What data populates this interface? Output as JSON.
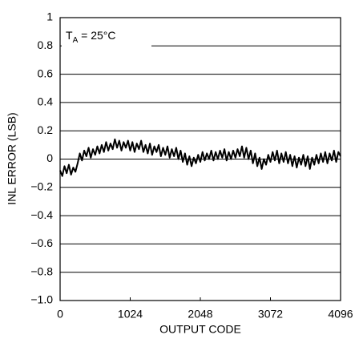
{
  "chart_data": {
    "type": "line",
    "xlabel": "OUTPUT CODE",
    "ylabel": "INL ERROR (LSB)",
    "annotation": {
      "main": "T",
      "sub": "A",
      "rest": " = 25°C"
    },
    "color": "#000000",
    "grid": true,
    "xlim": [
      0,
      4096
    ],
    "xticks": [
      0,
      1024,
      2048,
      3072,
      4096
    ],
    "ylim": [
      -1,
      1
    ],
    "yticks": [
      {
        "value": -1,
        "label": "−1.0"
      },
      {
        "value": -0.8,
        "label": "−0.8"
      },
      {
        "value": -0.6,
        "label": "−0.6"
      },
      {
        "value": -0.4,
        "label": "−0.4"
      },
      {
        "value": -0.2,
        "label": "−0.2"
      },
      0,
      0.2,
      0.4,
      0.6,
      0.8,
      1
    ],
    "x": [
      0,
      32,
      64,
      96,
      128,
      160,
      192,
      224,
      256,
      288,
      320,
      352,
      384,
      416,
      448,
      480,
      512,
      544,
      576,
      608,
      640,
      672,
      704,
      736,
      768,
      800,
      832,
      864,
      896,
      928,
      960,
      992,
      1024,
      1056,
      1088,
      1120,
      1152,
      1184,
      1216,
      1248,
      1280,
      1312,
      1344,
      1376,
      1408,
      1440,
      1472,
      1504,
      1536,
      1568,
      1600,
      1632,
      1664,
      1696,
      1728,
      1760,
      1792,
      1824,
      1856,
      1888,
      1920,
      1952,
      1984,
      2016,
      2048,
      2080,
      2112,
      2144,
      2176,
      2208,
      2240,
      2272,
      2304,
      2336,
      2368,
      2400,
      2432,
      2464,
      2496,
      2528,
      2560,
      2592,
      2624,
      2656,
      2688,
      2720,
      2752,
      2784,
      2816,
      2848,
      2880,
      2912,
      2944,
      2976,
      3008,
      3040,
      3072,
      3104,
      3136,
      3168,
      3200,
      3232,
      3264,
      3296,
      3328,
      3360,
      3392,
      3424,
      3456,
      3488,
      3520,
      3552,
      3584,
      3616,
      3648,
      3680,
      3712,
      3744,
      3776,
      3808,
      3840,
      3872,
      3904,
      3936,
      3968,
      4000,
      4032,
      4064,
      4096
    ],
    "values": [
      -0.08,
      -0.12,
      -0.05,
      -0.1,
      -0.04,
      -0.11,
      -0.06,
      -0.09,
      -0.03,
      0.04,
      -0.01,
      0.06,
      0.02,
      0.08,
      0.01,
      0.07,
      0.03,
      0.09,
      0.04,
      0.1,
      0.05,
      0.12,
      0.06,
      0.11,
      0.07,
      0.14,
      0.08,
      0.13,
      0.06,
      0.12,
      0.08,
      0.13,
      0.06,
      0.12,
      0.05,
      0.11,
      0.07,
      0.13,
      0.05,
      0.1,
      0.04,
      0.11,
      0.03,
      0.09,
      0.05,
      0.1,
      0.02,
      0.08,
      0.03,
      0.09,
      0.01,
      0.07,
      0.02,
      0.08,
      0.0,
      0.06,
      -0.02,
      0.04,
      -0.04,
      0.02,
      -0.05,
      0.01,
      -0.03,
      0.03,
      -0.02,
      0.05,
      -0.01,
      0.04,
      0.0,
      0.06,
      -0.01,
      0.05,
      0.0,
      0.06,
      0.01,
      0.07,
      -0.01,
      0.05,
      0.0,
      0.06,
      0.01,
      0.07,
      0.02,
      0.09,
      0.01,
      0.08,
      0.0,
      0.06,
      -0.03,
      0.04,
      -0.05,
      0.01,
      -0.07,
      0.0,
      -0.04,
      0.03,
      -0.02,
      0.05,
      -0.01,
      0.06,
      -0.03,
      0.04,
      -0.02,
      0.05,
      -0.03,
      0.03,
      -0.05,
      0.02,
      -0.06,
      0.01,
      -0.04,
      0.03,
      -0.05,
      0.02,
      -0.07,
      0.01,
      -0.04,
      0.03,
      -0.03,
      0.04,
      -0.02,
      0.05,
      -0.03,
      0.04,
      -0.01,
      0.06,
      -0.02,
      0.05,
      0.02
    ]
  }
}
